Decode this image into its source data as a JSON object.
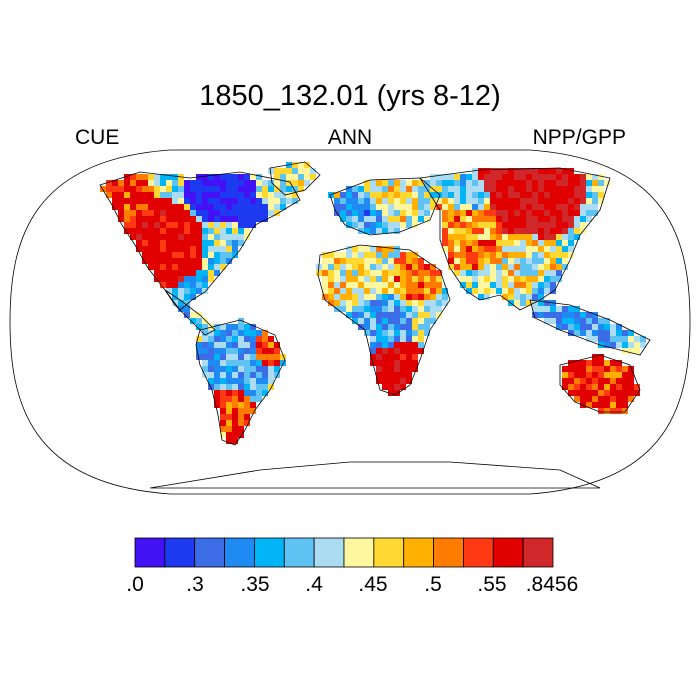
{
  "title": "1850_132.01 (yrs 8-12)",
  "left_label": "CUE",
  "center_label": "ANN",
  "right_label": "NPP/GPP",
  "colorbar": {
    "colors": [
      "#4212f5",
      "#1e3af0",
      "#3c6ce6",
      "#1f8bf2",
      "#00b4f6",
      "#5ec3f2",
      "#acdcf2",
      "#fff6a0",
      "#ffd831",
      "#ffb000",
      "#ff7c00",
      "#ff3a12",
      "#e00000",
      "#d0282a"
    ],
    "tick_labels": [
      ".0",
      ".3",
      ".35",
      ".4",
      ".45",
      ".5",
      ".55",
      ".8456"
    ]
  },
  "chart_data": {
    "type": "heatmap",
    "title": "1850_132.01 (yrs 8-12)",
    "variable": "CUE",
    "period": "ANN",
    "units": "NPP/GPP",
    "projection": "Robinson",
    "levels": [
      0.0,
      0.3,
      0.35,
      0.4,
      0.45,
      0.5,
      0.55,
      0.8456
    ],
    "regions": [
      {
        "name": "Western North America",
        "approx_value": 0.55
      },
      {
        "name": "Canadian Arctic",
        "approx_value": 0.2
      },
      {
        "name": "Eastern United States",
        "approx_value": 0.4
      },
      {
        "name": "Amazon",
        "approx_value": 0.37
      },
      {
        "name": "Southern South America",
        "approx_value": 0.55
      },
      {
        "name": "Sahara",
        "approx_value": 0.45
      },
      {
        "name": "Central Africa",
        "approx_value": 0.37
      },
      {
        "name": "Southern Africa",
        "approx_value": 0.55
      },
      {
        "name": "Europe",
        "approx_value": 0.37
      },
      {
        "name": "Siberia",
        "approx_value": 0.6
      },
      {
        "name": "Central Asia",
        "approx_value": 0.5
      },
      {
        "name": "Southeast Asia",
        "approx_value": 0.36
      },
      {
        "name": "Australia",
        "approx_value": 0.55
      }
    ]
  }
}
